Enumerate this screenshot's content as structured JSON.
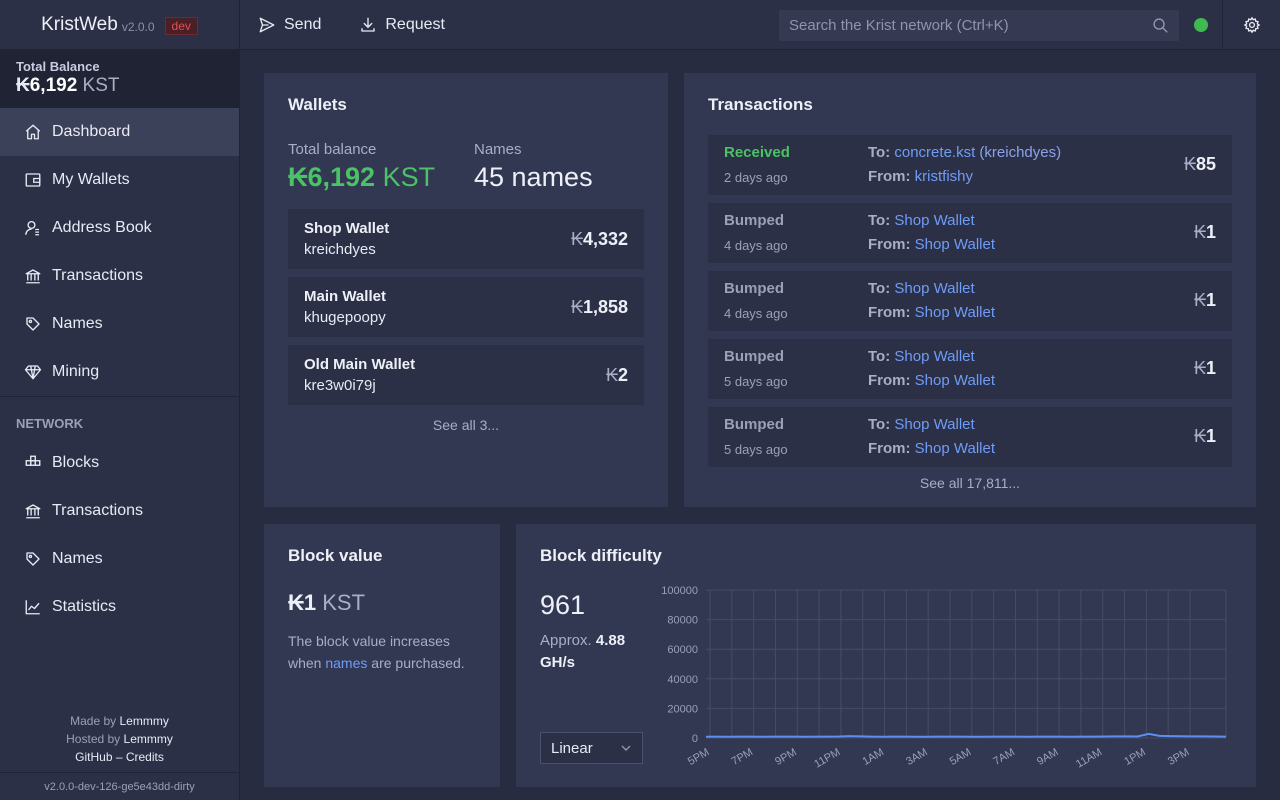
{
  "topbar": {
    "app_name": "KristWeb",
    "version": "v2.0.0",
    "env_badge": "dev",
    "send_label": "Send",
    "request_label": "Request",
    "search_placeholder": "Search the Krist network (Ctrl+K)",
    "connection_status_color": "#3fb950"
  },
  "sidebar": {
    "total_balance_label": "Total Balance",
    "total_balance_symbol": "₭",
    "total_balance_value": "6,192",
    "total_balance_unit": " KST",
    "items": [
      {
        "label": "Dashboard",
        "icon": "home-icon"
      },
      {
        "label": "My Wallets",
        "icon": "wallet-icon"
      },
      {
        "label": "Address Book",
        "icon": "contacts-icon"
      },
      {
        "label": "Transactions",
        "icon": "bank-icon"
      },
      {
        "label": "Names",
        "icon": "tag-icon"
      },
      {
        "label": "Mining",
        "icon": "diamond-icon"
      }
    ],
    "network_section": "NETWORK",
    "network_items": [
      {
        "label": "Blocks",
        "icon": "blocks-icon"
      },
      {
        "label": "Transactions",
        "icon": "bank-icon"
      },
      {
        "label": "Names",
        "icon": "tag-icon"
      },
      {
        "label": "Statistics",
        "icon": "chart-icon"
      }
    ],
    "footer": {
      "made_by_prefix": "Made by ",
      "made_by": "Lemmmy",
      "hosted_by_prefix": "Hosted by ",
      "hosted_by": "Lemmmy",
      "github": "GitHub",
      "separator": " – ",
      "credits": "Credits"
    },
    "build_version": "v2.0.0-dev-126-ge5e43dd-dirty"
  },
  "wallets": {
    "title": "Wallets",
    "total_balance_label": "Total balance",
    "total_balance_symbol": "₭",
    "total_balance_value": "6,192",
    "total_balance_unit": " KST",
    "names_label": "Names",
    "names_value": "45 names",
    "items": [
      {
        "name": "Shop Wallet",
        "address": "kreichdyes",
        "symbol": "₭",
        "balance": "4,332"
      },
      {
        "name": "Main Wallet",
        "address": "khugepoopy",
        "symbol": "₭",
        "balance": "1,858"
      },
      {
        "name": "Old Main Wallet",
        "address": "kre3w0i79j",
        "symbol": "₭",
        "balance": "2"
      }
    ],
    "see_all": "See all 3..."
  },
  "transactions": {
    "title": "Transactions",
    "to_label": "To: ",
    "from_label": "From: ",
    "items": [
      {
        "type": "Received",
        "time": "2 days ago",
        "to": "concrete.kst",
        "to_extra": " (kreichdyes)",
        "from": "kristfishy",
        "symbol": "₭",
        "amount": "85"
      },
      {
        "type": "Bumped",
        "time": "4 days ago",
        "to": "Shop Wallet",
        "to_extra": "",
        "from": "Shop Wallet",
        "symbol": "₭",
        "amount": "1"
      },
      {
        "type": "Bumped",
        "time": "4 days ago",
        "to": "Shop Wallet",
        "to_extra": "",
        "from": "Shop Wallet",
        "symbol": "₭",
        "amount": "1"
      },
      {
        "type": "Bumped",
        "time": "5 days ago",
        "to": "Shop Wallet",
        "to_extra": "",
        "from": "Shop Wallet",
        "symbol": "₭",
        "amount": "1"
      },
      {
        "type": "Bumped",
        "time": "5 days ago",
        "to": "Shop Wallet",
        "to_extra": "",
        "from": "Shop Wallet",
        "symbol": "₭",
        "amount": "1"
      }
    ],
    "see_all": "See all 17,811..."
  },
  "block_value": {
    "title": "Block value",
    "symbol": "₭",
    "value": "1",
    "unit": " KST",
    "desc_before": "The block value increases when ",
    "desc_link": "names",
    "desc_after": " are purchased."
  },
  "block_difficulty": {
    "title": "Block difficulty",
    "value": "961",
    "approx_prefix": "Approx. ",
    "approx_value": "4.88",
    "approx_unit": "GH/s",
    "scale_select": "Linear"
  },
  "chart_data": {
    "type": "line",
    "title": "",
    "xlabel": "",
    "ylabel": "",
    "ylim": [
      0,
      100000
    ],
    "yticks": [
      "100000",
      "80000",
      "60000",
      "40000",
      "20000",
      "0"
    ],
    "xticks": [
      "5PM",
      "7PM",
      "9PM",
      "11PM",
      "1AM",
      "3AM",
      "5AM",
      "7AM",
      "9AM",
      "11AM",
      "1PM",
      "3PM"
    ],
    "grid": true,
    "line_color": "#5b8ff0",
    "series": [
      {
        "values": [
          900,
          920,
          900,
          950,
          930,
          910,
          960,
          940,
          920,
          900,
          930,
          960,
          990,
          1300,
          1100,
          950,
          900,
          920,
          940,
          910,
          900,
          930,
          950,
          920,
          910,
          900,
          940,
          960,
          930,
          900,
          920,
          950,
          930,
          910,
          940,
          960,
          1000,
          1100,
          1050,
          1000,
          2800,
          1400,
          1300,
          1200,
          1100,
          1050,
          1000,
          961
        ]
      }
    ]
  }
}
